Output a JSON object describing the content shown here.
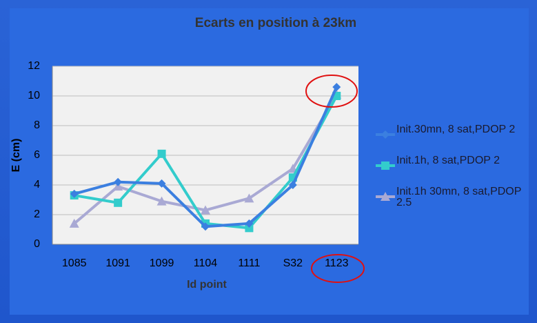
{
  "chart_data": {
    "type": "line",
    "title": "Ecarts en position à 23km",
    "x_label": "Id point",
    "y_label": "E (cm)",
    "categories": [
      "1085",
      "1091",
      "1099",
      "1104",
      "1111",
      "S32",
      "1123"
    ],
    "series": [
      {
        "name": "Init.30mn, 8 sat,PDOP 2",
        "color": "#3b7fe0",
        "marker": "diamond",
        "values": [
          3.4,
          4.2,
          4.1,
          1.2,
          1.4,
          4.0,
          10.6
        ]
      },
      {
        "name": "Init.1h, 8 sat,PDOP 2",
        "color": "#33cccc",
        "marker": "square",
        "values": [
          3.3,
          2.8,
          6.1,
          1.4,
          1.1,
          4.5,
          10.0
        ]
      },
      {
        "name": "Init.1h 30mn, 8 sat,PDOP 2.5",
        "color": "#a9a9d4",
        "marker": "triangle",
        "values": [
          1.4,
          3.9,
          2.9,
          2.3,
          3.1,
          5.1,
          10.1
        ]
      }
    ],
    "ylim": [
      0,
      12
    ],
    "yticks": [
      0,
      2,
      4,
      6,
      8,
      10,
      12
    ],
    "grid": true,
    "legend": "right"
  }
}
